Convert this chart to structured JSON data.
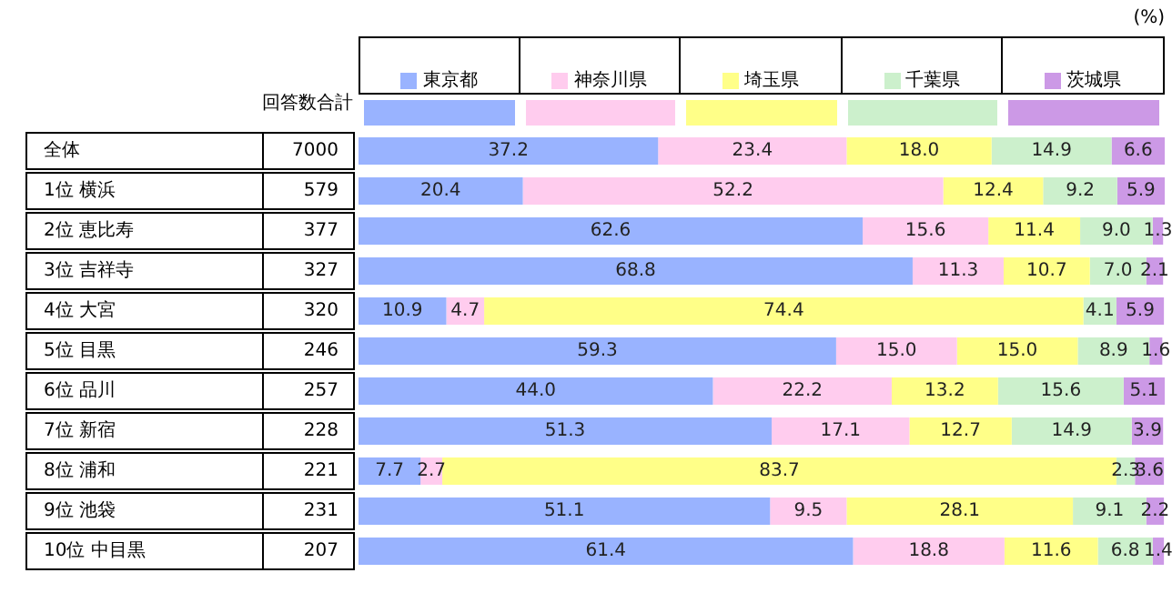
{
  "chart_data": {
    "type": "bar",
    "orientation": "horizontal",
    "stacked": true,
    "legend": "top",
    "tick_labels": "y",
    "categories": [
      "全体",
      "1位 横浜",
      "2位 恵比寿",
      "3位 吉祥寺",
      "4位 大宮",
      "5位 目黒",
      "6位 品川",
      "7位 新宿",
      "8位 浦和",
      "9位 池袋",
      "10位 中目黒"
    ],
    "y2label": "回答数合計",
    "y2_categories": [
      "7000",
      "579",
      "377",
      "327",
      "320",
      "246",
      "257",
      "228",
      "221",
      "231",
      "207"
    ],
    "xlim": [
      0,
      100.1
    ],
    "annotations": [
      "(%)"
    ],
    "series": [
      {
        "name": "東京都",
        "color": "#99b3ff",
        "values": [
          37.2,
          20.4,
          62.6,
          68.8,
          10.9,
          59.3,
          44.0,
          51.3,
          7.7,
          51.1,
          61.4
        ],
        "value_labels": [
          "37.2",
          "20.4",
          "62.6",
          "68.8",
          "10.9",
          "59.3",
          "44.0",
          "51.3",
          "7.7",
          "51.1",
          "61.4"
        ]
      },
      {
        "name": "神奈川県",
        "color": "#ffccee",
        "values": [
          23.4,
          52.2,
          15.6,
          11.3,
          4.7,
          15.0,
          22.2,
          17.1,
          2.7,
          9.5,
          18.8
        ],
        "value_labels": [
          "23.4",
          "52.2",
          "15.6",
          "11.3",
          "4.7",
          "15.0",
          "22.2",
          "17.1",
          "2.7",
          "9.5",
          "18.8"
        ]
      },
      {
        "name": "埼玉県",
        "color": "#ffff88",
        "values": [
          18.0,
          12.4,
          11.4,
          10.7,
          74.4,
          15.0,
          13.2,
          12.7,
          83.7,
          28.1,
          11.6
        ],
        "value_labels": [
          "18.0",
          "12.4",
          "11.4",
          "10.7",
          "74.4",
          "15.0",
          "13.2",
          "12.7",
          "83.7",
          "28.1",
          "11.6"
        ]
      },
      {
        "name": "千葉県",
        "color": "#ccf0cc",
        "values": [
          14.9,
          9.2,
          9.0,
          7.0,
          4.1,
          8.9,
          15.6,
          14.9,
          2.3,
          9.1,
          6.8
        ],
        "value_labels": [
          "14.9",
          "9.2",
          "9.0",
          "7.0",
          "4.1",
          "8.9",
          "15.6",
          "14.9",
          "2.3",
          "9.1",
          "6.8"
        ]
      },
      {
        "name": "茨城県",
        "color": "#cc99e6",
        "values": [
          6.6,
          5.9,
          1.3,
          2.1,
          5.9,
          1.6,
          5.1,
          3.9,
          3.6,
          2.2,
          1.4
        ],
        "value_labels": [
          "6.6",
          "5.9",
          "1.3",
          "2.1",
          "5.9",
          "1.6",
          "5.1",
          "3.9",
          "3.6",
          "2.2",
          "1.4"
        ]
      }
    ]
  }
}
